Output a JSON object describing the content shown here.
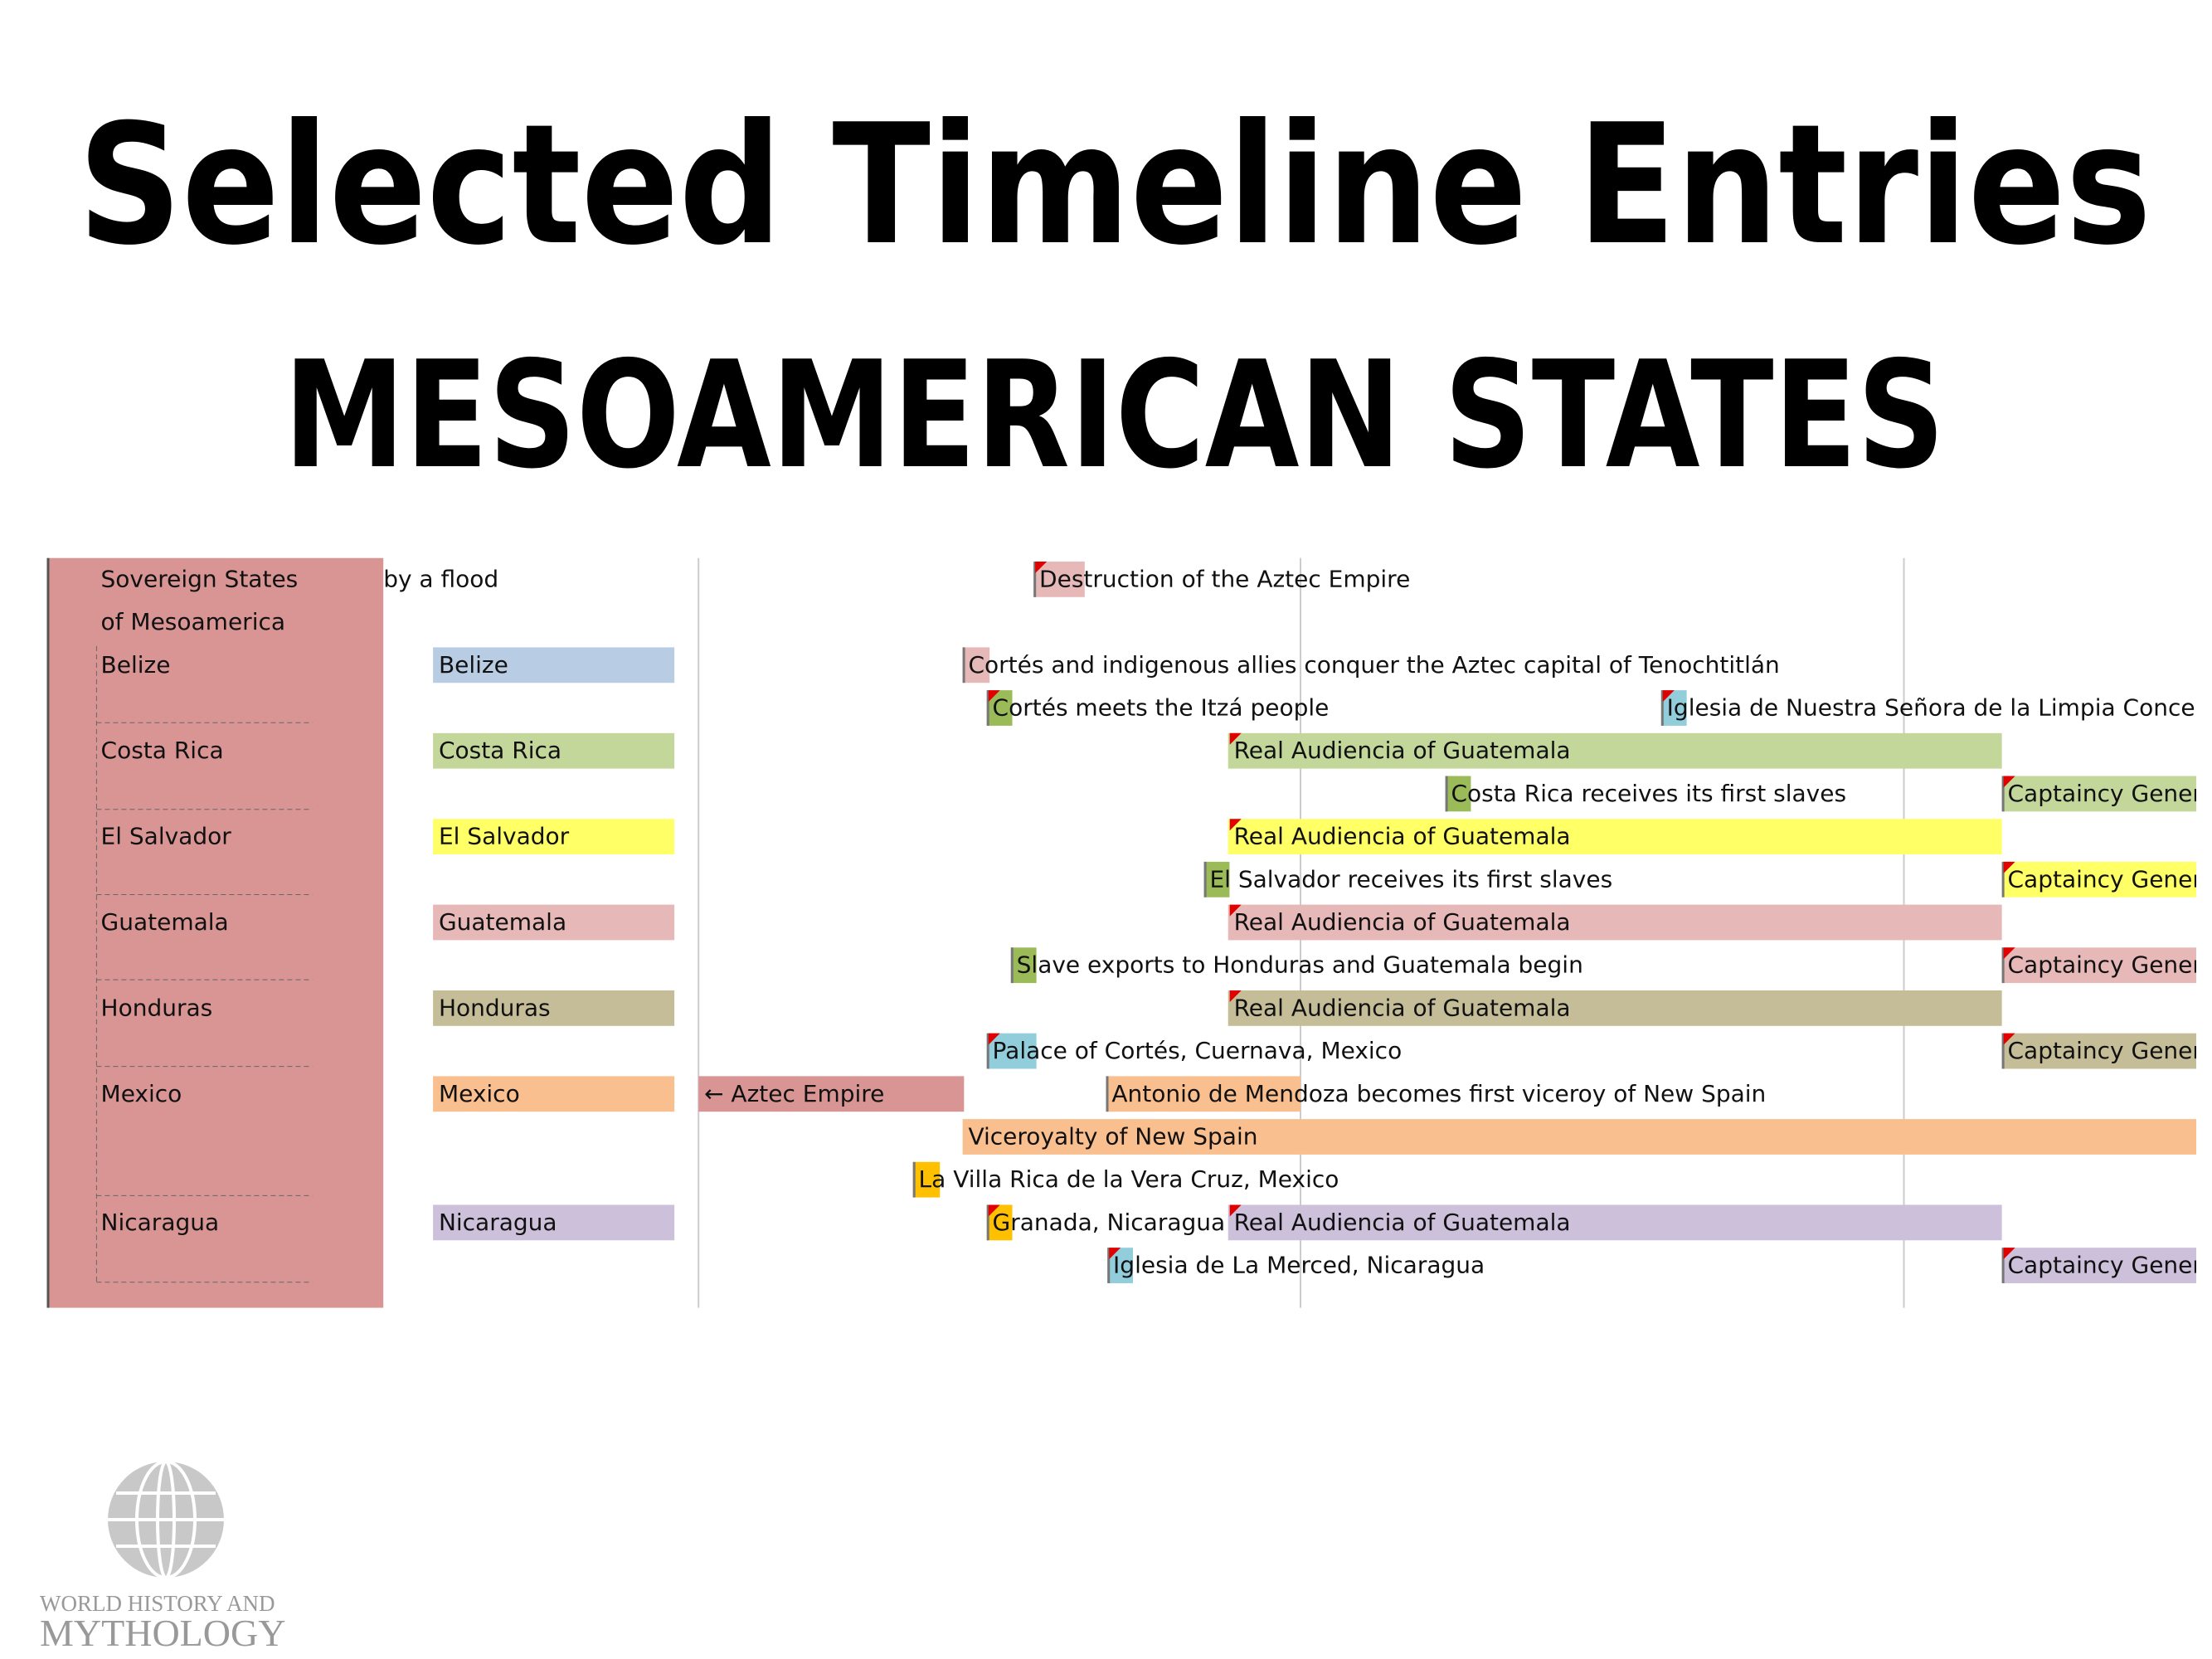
{
  "header": {
    "title": "Selected Timeline Entries",
    "subtitle": "MESOAMERICAN STATES"
  },
  "sidebar": {
    "heading_line1": "Sovereign States",
    "heading_line2": "of Mesoamerica",
    "states": [
      "Belize",
      "Costa Rica",
      "El Salvador",
      "Guatemala",
      "Honduras",
      "Mexico",
      "Nicaragua"
    ]
  },
  "column_labels": [
    "Belize",
    "Costa Rica",
    "El Salvador",
    "Guatemala",
    "Honduras",
    "Mexico",
    "Nicaragua"
  ],
  "timeline": {
    "fragment": "by a flood",
    "aztec_label": "← Aztec Empire",
    "entries": [
      "Destruction of the Aztec Empire",
      "Cortés and indigenous allies conquer the Aztec capital of Tenochtitlán",
      "Cortés meets the Itzá people",
      "Iglesia de Nuestra Señora de la Limpia Concep",
      "Real Audiencia of Guatemala",
      "Costa Rica receives its first slaves",
      "Captaincy Gener",
      "Real Audiencia of Guatemala",
      "El Salvador receives its first slaves",
      "Captaincy Gener",
      "Real Audiencia of Guatemala",
      "Slave exports to Honduras and Guatemala begin",
      "Captaincy Gener",
      "Real Audiencia of Guatemala",
      "Palace of Cortés, Cuernava, Mexico",
      "Captaincy Gener",
      "Antonio de Mendoza becomes first viceroy of New Spain",
      "Viceroyalty of New Spain",
      "La Villa Rica de la Vera Cruz, Mexico",
      "Granada, Nicaragua",
      "Real Audiencia of Guatemala",
      "Iglesia de La Merced, Nicaragua",
      "Captaincy Gener"
    ]
  },
  "logo": {
    "line1": "WORLD HISTORY AND",
    "line2": "MYTHOLOGY"
  }
}
